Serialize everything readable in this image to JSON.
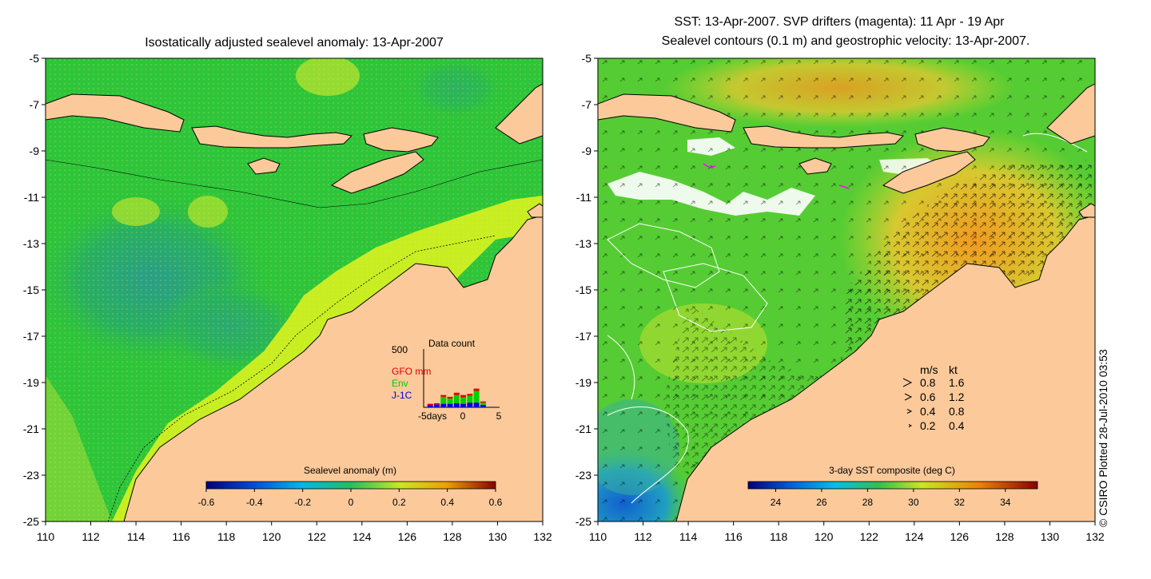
{
  "left_panel": {
    "title": "Isostatically adjusted sealevel anomaly: 13-Apr-2007",
    "colorbar": {
      "label": "Sealevel anomaly (m)",
      "ticks": [
        "-0.6",
        "-0.4",
        "-0.2",
        "0",
        "0.2",
        "0.4",
        "0.6"
      ]
    },
    "data_count": {
      "title": "Data count",
      "ymax": "500",
      "series": [
        {
          "name": "GFO mm",
          "color": "#e00000"
        },
        {
          "name": "Env",
          "color": "#00d000"
        },
        {
          "name": "J-1C",
          "color": "#0000e0"
        }
      ],
      "x_ticks": [
        "-5days",
        "0",
        "5"
      ],
      "bars": [
        {
          "day": -5,
          "j1c": 20,
          "env": 0,
          "gfo": 10
        },
        {
          "day": -4,
          "j1c": 25,
          "env": 0,
          "gfo": 10
        },
        {
          "day": -3,
          "j1c": 30,
          "env": 60,
          "gfo": 15
        },
        {
          "day": -2,
          "j1c": 30,
          "env": 45,
          "gfo": 15
        },
        {
          "day": -1,
          "j1c": 35,
          "env": 70,
          "gfo": 20
        },
        {
          "day": 0,
          "j1c": 30,
          "env": 55,
          "gfo": 20
        },
        {
          "day": 1,
          "j1c": 40,
          "env": 60,
          "gfo": 15
        },
        {
          "day": 2,
          "j1c": 40,
          "env": 100,
          "gfo": 20
        },
        {
          "day": 3,
          "j1c": 20,
          "env": 20,
          "gfo": 10
        }
      ]
    }
  },
  "right_panel": {
    "title_line1": "SST: 13-Apr-2007. SVP drifters (magenta): 11 Apr - 19 Apr",
    "title_line2": "Sealevel contours (0.1 m) and geostrophic velocity: 13-Apr-2007.",
    "colorbar": {
      "label": "3-day SST composite (deg C)",
      "ticks": [
        "24",
        "26",
        "28",
        "30",
        "32",
        "34"
      ]
    },
    "velocity_legend": {
      "header_ms": "m/s",
      "header_kt": "kt",
      "rows": [
        {
          "ms": "0.8",
          "kt": "1.6"
        },
        {
          "ms": "0.6",
          "kt": "1.2"
        },
        {
          "ms": "0.4",
          "kt": "0.8"
        },
        {
          "ms": "0.2",
          "kt": "0.4"
        }
      ]
    }
  },
  "axes": {
    "lat_ticks": [
      "-5",
      "-7",
      "-9",
      "-11",
      "-13",
      "-15",
      "-17",
      "-19",
      "-21",
      "-23",
      "-25"
    ],
    "lon_ticks": [
      "110",
      "112",
      "114",
      "116",
      "118",
      "120",
      "122",
      "124",
      "126",
      "128",
      "130",
      "132"
    ],
    "lat_range": [
      -25,
      -5
    ],
    "lon_range": [
      110,
      132
    ]
  },
  "credit": "© CSIRO Plotted 28-Jul-2010 03:53",
  "colors": {
    "land": "#fbc99a",
    "ssl_green": "#2ec53a",
    "ssl_yellow": "#c8ee22",
    "ssl_teal": "#2aab7a",
    "sst_green": "#55cc33",
    "sst_orange": "#e0a020",
    "sst_blue": "#2090d0"
  }
}
